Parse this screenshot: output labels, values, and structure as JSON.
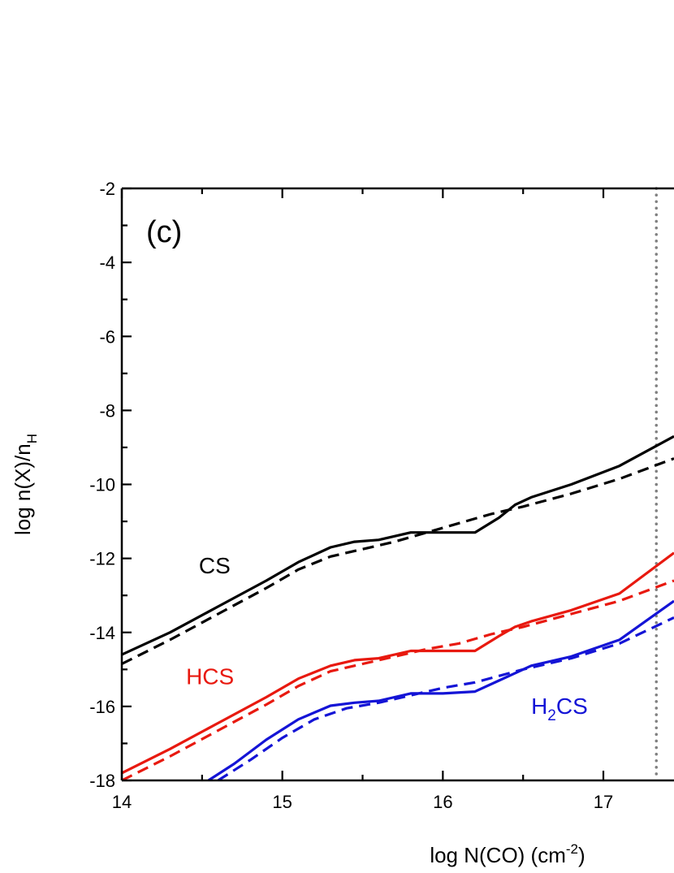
{
  "chart_data": {
    "type": "line",
    "panel_label": "(c)",
    "xlabel": "log N(CO) (cm",
    "xlabel_sup": "-2",
    "xlabel_end": ")",
    "ylabel": "log n(X)/n",
    "ylabel_sub": "H",
    "xlim": [
      14,
      17.44
    ],
    "ylim": [
      -18,
      -2
    ],
    "xticks": [
      14,
      15,
      16,
      17
    ],
    "xtick_labels": [
      "14",
      "15",
      "16",
      "17"
    ],
    "yticks": [
      -18,
      -16,
      -14,
      -12,
      -10,
      -8,
      -6,
      -4,
      -2
    ],
    "ytick_labels": [
      "-18",
      "-16",
      "-14",
      "-12",
      "-10",
      "-8",
      "-6",
      "-4",
      "-2"
    ],
    "vline": {
      "x": 17.33,
      "color": "#808080",
      "style": "dotted"
    },
    "series": [
      {
        "label_text": "CS",
        "label_sub": "",
        "label_end": "",
        "label_pos": [
          14.48,
          -12.4
        ],
        "color": "#000000",
        "solid": {
          "x": [
            14.0,
            14.3,
            14.6,
            14.9,
            15.1,
            15.3,
            15.45,
            15.6,
            15.8,
            16.0,
            16.2,
            16.35,
            16.45,
            16.55,
            16.8,
            17.1,
            17.44
          ],
          "y": [
            -14.6,
            -14.0,
            -13.3,
            -12.6,
            -12.1,
            -11.7,
            -11.55,
            -11.5,
            -11.3,
            -11.3,
            -11.3,
            -10.9,
            -10.55,
            -10.35,
            -10.0,
            -9.5,
            -8.7
          ]
        },
        "dashed": {
          "x": [
            14.0,
            14.3,
            14.6,
            14.9,
            15.1,
            15.3,
            15.5,
            15.7,
            15.9,
            16.1,
            16.3,
            16.5,
            16.8,
            17.1,
            17.44
          ],
          "y": [
            -14.85,
            -14.2,
            -13.5,
            -12.8,
            -12.3,
            -11.95,
            -11.75,
            -11.55,
            -11.3,
            -11.05,
            -10.8,
            -10.6,
            -10.25,
            -9.85,
            -9.3
          ]
        }
      },
      {
        "label_text": "HCS",
        "label_sub": "",
        "label_end": "",
        "label_pos": [
          14.4,
          -15.4
        ],
        "color": "#e8190f",
        "solid": {
          "x": [
            14.0,
            14.3,
            14.6,
            14.9,
            15.1,
            15.3,
            15.45,
            15.6,
            15.8,
            16.0,
            16.2,
            16.35,
            16.45,
            16.55,
            16.8,
            17.1,
            17.44
          ],
          "y": [
            -17.8,
            -17.15,
            -16.45,
            -15.75,
            -15.25,
            -14.9,
            -14.75,
            -14.7,
            -14.5,
            -14.5,
            -14.5,
            -14.1,
            -13.85,
            -13.7,
            -13.4,
            -12.95,
            -11.85
          ]
        },
        "dashed": {
          "x": [
            14.0,
            14.3,
            14.6,
            14.9,
            15.1,
            15.3,
            15.5,
            15.7,
            15.9,
            16.1,
            16.3,
            16.5,
            16.8,
            17.1,
            17.44
          ],
          "y": [
            -18.0,
            -17.35,
            -16.65,
            -15.95,
            -15.45,
            -15.05,
            -14.85,
            -14.65,
            -14.45,
            -14.3,
            -14.05,
            -13.85,
            -13.5,
            -13.15,
            -12.6
          ]
        }
      },
      {
        "label_text": "H",
        "label_sub": "2",
        "label_end": "CS",
        "label_pos": [
          16.55,
          -16.2
        ],
        "color": "#1414d6",
        "solid": {
          "x": [
            14.54,
            14.7,
            14.9,
            15.1,
            15.3,
            15.45,
            15.6,
            15.8,
            16.0,
            16.2,
            16.35,
            16.45,
            16.55,
            16.8,
            17.1,
            17.44
          ],
          "y": [
            -18.0,
            -17.55,
            -16.9,
            -16.35,
            -15.98,
            -15.9,
            -15.85,
            -15.65,
            -15.65,
            -15.6,
            -15.3,
            -15.1,
            -14.9,
            -14.65,
            -14.2,
            -13.15
          ]
        },
        "dashed": {
          "x": [
            14.6,
            14.8,
            15.0,
            15.2,
            15.4,
            15.6,
            15.8,
            16.0,
            16.2,
            16.5,
            16.8,
            17.1,
            17.44
          ],
          "y": [
            -18.0,
            -17.45,
            -16.85,
            -16.35,
            -16.05,
            -15.9,
            -15.7,
            -15.5,
            -15.35,
            -15.0,
            -14.7,
            -14.3,
            -13.6
          ]
        }
      }
    ]
  }
}
